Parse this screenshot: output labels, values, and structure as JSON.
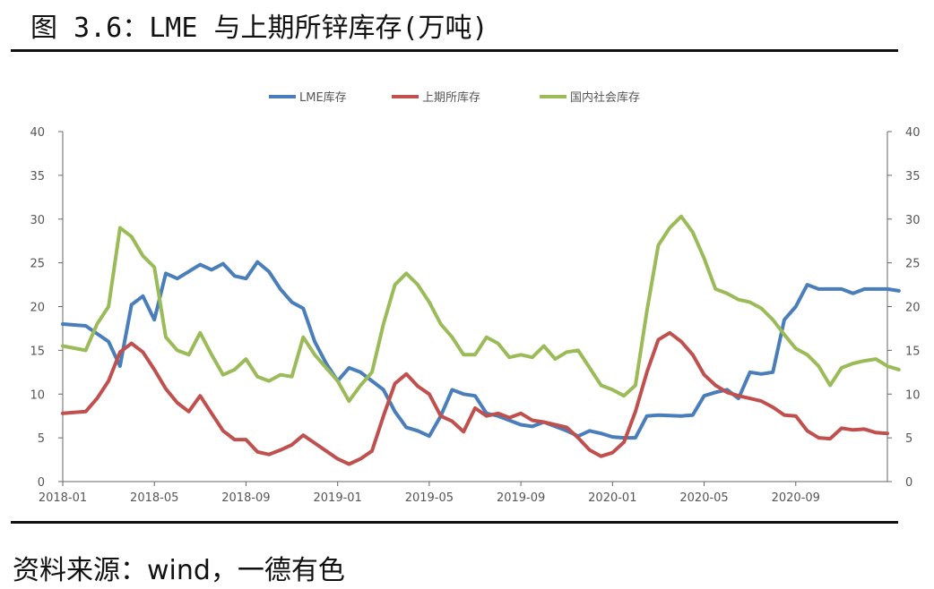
{
  "title": "图 3.6：LME 与上期所锌库存(万吨)",
  "source": "资料来源：wind，一德有色",
  "chart_data": {
    "type": "line",
    "xlabel": "",
    "ylabel": "",
    "ylim": [
      0,
      40
    ],
    "yticks": [
      "0",
      "5",
      "10",
      "15",
      "20",
      "25",
      "30",
      "35",
      "40"
    ],
    "x_tick_labels": [
      "2018-01",
      "2018-05",
      "2018-09",
      "2019-01",
      "2019-05",
      "2019-09",
      "2020-01",
      "2020-05",
      "2020-09"
    ],
    "x_range": [
      "2018-01",
      "2021-01"
    ],
    "legend_position": "top",
    "series": [
      {
        "name": "LME库存",
        "color": "#4a7ebb",
        "points": [
          [
            "2018-01",
            18.0
          ],
          [
            "2018-02",
            17.8
          ],
          [
            "2018-03",
            16.0
          ],
          [
            "2018-03",
            13.2
          ],
          [
            "2018-04",
            20.2
          ],
          [
            "2018-04",
            21.2
          ],
          [
            "2018-05",
            18.5
          ],
          [
            "2018-05",
            23.8
          ],
          [
            "2018-06",
            23.2
          ],
          [
            "2018-07",
            24.8
          ],
          [
            "2018-07",
            24.2
          ],
          [
            "2018-08",
            24.9
          ],
          [
            "2018-08",
            23.5
          ],
          [
            "2018-09",
            23.2
          ],
          [
            "2018-09",
            25.1
          ],
          [
            "2018-10",
            24.0
          ],
          [
            "2018-10",
            22.0
          ],
          [
            "2018-11",
            20.5
          ],
          [
            "2018-11",
            19.8
          ],
          [
            "2018-12",
            16.0
          ],
          [
            "2018-12",
            13.5
          ],
          [
            "2019-01",
            11.5
          ],
          [
            "2019-01",
            13.0
          ],
          [
            "2019-02",
            12.5
          ],
          [
            "2019-02",
            11.5
          ],
          [
            "2019-03",
            10.5
          ],
          [
            "2019-03",
            8.0
          ],
          [
            "2019-04",
            6.2
          ],
          [
            "2019-04",
            5.8
          ],
          [
            "2019-05",
            5.2
          ],
          [
            "2019-05",
            7.5
          ],
          [
            "2019-06",
            10.5
          ],
          [
            "2019-06",
            10.0
          ],
          [
            "2019-07",
            9.8
          ],
          [
            "2019-07",
            7.8
          ],
          [
            "2019-08",
            7.5
          ],
          [
            "2019-09",
            6.5
          ],
          [
            "2019-09",
            6.3
          ],
          [
            "2019-10",
            6.8
          ],
          [
            "2019-11",
            5.8
          ],
          [
            "2019-11",
            5.2
          ],
          [
            "2019-12",
            5.8
          ],
          [
            "2019-12",
            5.5
          ],
          [
            "2020-01",
            5.1
          ],
          [
            "2020-01",
            5.0
          ],
          [
            "2020-02",
            5.0
          ],
          [
            "2020-02",
            7.5
          ],
          [
            "2020-03",
            7.6
          ],
          [
            "2020-04",
            7.5
          ],
          [
            "2020-04",
            7.6
          ],
          [
            "2020-05",
            9.8
          ],
          [
            "2020-05",
            10.2
          ],
          [
            "2020-06",
            10.5
          ],
          [
            "2020-06",
            9.5
          ],
          [
            "2020-07",
            12.5
          ],
          [
            "2020-07",
            12.3
          ],
          [
            "2020-08",
            12.5
          ],
          [
            "2020-08",
            18.5
          ],
          [
            "2020-09",
            20.0
          ],
          [
            "2020-09",
            22.5
          ],
          [
            "2020-10",
            22.0
          ],
          [
            "2020-11",
            22.0
          ],
          [
            "2020-11",
            21.5
          ],
          [
            "2020-12",
            22.0
          ],
          [
            "2021-01",
            22.0
          ],
          [
            "2021-01",
            21.8
          ]
        ]
      },
      {
        "name": "上期所库存",
        "color": "#c0504d",
        "points": [
          [
            "2018-01",
            7.8
          ],
          [
            "2018-02",
            8.0
          ],
          [
            "2018-02",
            9.5
          ],
          [
            "2018-03",
            11.5
          ],
          [
            "2018-03",
            14.8
          ],
          [
            "2018-04",
            15.8
          ],
          [
            "2018-04",
            14.8
          ],
          [
            "2018-05",
            12.8
          ],
          [
            "2018-05",
            10.6
          ],
          [
            "2018-06",
            9.0
          ],
          [
            "2018-06",
            8.0
          ],
          [
            "2018-07",
            9.8
          ],
          [
            "2018-07",
            7.8
          ],
          [
            "2018-08",
            5.8
          ],
          [
            "2018-08",
            4.8
          ],
          [
            "2018-09",
            4.8
          ],
          [
            "2018-09",
            3.4
          ],
          [
            "2018-10",
            3.1
          ],
          [
            "2018-10",
            3.6
          ],
          [
            "2018-11",
            4.2
          ],
          [
            "2018-11",
            5.3
          ],
          [
            "2018-12",
            4.4
          ],
          [
            "2018-12",
            3.5
          ],
          [
            "2019-01",
            2.6
          ],
          [
            "2019-01",
            2.0
          ],
          [
            "2019-02",
            2.6
          ],
          [
            "2019-02",
            3.5
          ],
          [
            "2019-03",
            7.5
          ],
          [
            "2019-03",
            11.2
          ],
          [
            "2019-04",
            12.3
          ],
          [
            "2019-04",
            10.9
          ],
          [
            "2019-05",
            10.0
          ],
          [
            "2019-05",
            7.5
          ],
          [
            "2019-06",
            6.9
          ],
          [
            "2019-06",
            5.7
          ],
          [
            "2019-07",
            8.4
          ],
          [
            "2019-07",
            7.5
          ],
          [
            "2019-08",
            7.8
          ],
          [
            "2019-08",
            7.3
          ],
          [
            "2019-09",
            7.8
          ],
          [
            "2019-09",
            7.0
          ],
          [
            "2019-10",
            6.8
          ],
          [
            "2019-10",
            6.5
          ],
          [
            "2019-11",
            6.2
          ],
          [
            "2019-11",
            5.0
          ],
          [
            "2019-12",
            3.6
          ],
          [
            "2019-12",
            2.9
          ],
          [
            "2020-01",
            3.3
          ],
          [
            "2020-01",
            4.5
          ],
          [
            "2020-02",
            8.0
          ],
          [
            "2020-02",
            12.5
          ],
          [
            "2020-03",
            16.2
          ],
          [
            "2020-03",
            17.0
          ],
          [
            "2020-04",
            16.0
          ],
          [
            "2020-04",
            14.5
          ],
          [
            "2020-05",
            12.2
          ],
          [
            "2020-05",
            11.0
          ],
          [
            "2020-06",
            10.2
          ],
          [
            "2020-06",
            9.8
          ],
          [
            "2020-07",
            9.5
          ],
          [
            "2020-07",
            9.2
          ],
          [
            "2020-08",
            8.5
          ],
          [
            "2020-08",
            7.6
          ],
          [
            "2020-09",
            7.5
          ],
          [
            "2020-09",
            5.8
          ],
          [
            "2020-10",
            5.0
          ],
          [
            "2020-10",
            4.9
          ],
          [
            "2020-11",
            6.1
          ],
          [
            "2020-11",
            5.9
          ],
          [
            "2020-12",
            6.0
          ],
          [
            "2020-12",
            5.6
          ],
          [
            "2021-01",
            5.5
          ]
        ]
      },
      {
        "name": "国内社会库存",
        "color": "#9bbb59",
        "points": [
          [
            "2018-01",
            15.5
          ],
          [
            "2018-02",
            15.0
          ],
          [
            "2018-02",
            18.0
          ],
          [
            "2018-03",
            20.0
          ],
          [
            "2018-03",
            29.0
          ],
          [
            "2018-04",
            28.0
          ],
          [
            "2018-04",
            25.8
          ],
          [
            "2018-05",
            24.5
          ],
          [
            "2018-05",
            16.5
          ],
          [
            "2018-06",
            15.0
          ],
          [
            "2018-06",
            14.5
          ],
          [
            "2018-07",
            17.0
          ],
          [
            "2018-07",
            14.5
          ],
          [
            "2018-08",
            12.2
          ],
          [
            "2018-08",
            12.8
          ],
          [
            "2018-09",
            14.0
          ],
          [
            "2018-09",
            12.0
          ],
          [
            "2018-10",
            11.5
          ],
          [
            "2018-10",
            12.2
          ],
          [
            "2018-11",
            12.0
          ],
          [
            "2018-11",
            16.5
          ],
          [
            "2018-12",
            14.5
          ],
          [
            "2018-12",
            13.0
          ],
          [
            "2019-01",
            11.5
          ],
          [
            "2019-01",
            9.2
          ],
          [
            "2019-02",
            11.0
          ],
          [
            "2019-02",
            12.5
          ],
          [
            "2019-03",
            18.0
          ],
          [
            "2019-03",
            22.5
          ],
          [
            "2019-04",
            23.8
          ],
          [
            "2019-04",
            22.5
          ],
          [
            "2019-05",
            20.5
          ],
          [
            "2019-05",
            18.0
          ],
          [
            "2019-06",
            16.5
          ],
          [
            "2019-06",
            14.5
          ],
          [
            "2019-07",
            14.5
          ],
          [
            "2019-07",
            16.5
          ],
          [
            "2019-08",
            15.8
          ],
          [
            "2019-08",
            14.2
          ],
          [
            "2019-09",
            14.5
          ],
          [
            "2019-09",
            14.2
          ],
          [
            "2019-10",
            15.5
          ],
          [
            "2019-10",
            14.0
          ],
          [
            "2019-11",
            14.8
          ],
          [
            "2019-11",
            15.0
          ],
          [
            "2019-12",
            13.0
          ],
          [
            "2019-12",
            11.0
          ],
          [
            "2020-01",
            10.5
          ],
          [
            "2020-01",
            9.8
          ],
          [
            "2020-02",
            11.0
          ],
          [
            "2020-02",
            19.5
          ],
          [
            "2020-03",
            27.0
          ],
          [
            "2020-03",
            29.0
          ],
          [
            "2020-04",
            30.3
          ],
          [
            "2020-04",
            28.5
          ],
          [
            "2020-05",
            25.5
          ],
          [
            "2020-05",
            22.0
          ],
          [
            "2020-06",
            21.5
          ],
          [
            "2020-06",
            20.8
          ],
          [
            "2020-07",
            20.5
          ],
          [
            "2020-07",
            19.8
          ],
          [
            "2020-08",
            18.5
          ],
          [
            "2020-08",
            16.8
          ],
          [
            "2020-09",
            15.2
          ],
          [
            "2020-09",
            14.5
          ],
          [
            "2020-10",
            13.2
          ],
          [
            "2020-10",
            11.0
          ],
          [
            "2020-11",
            13.0
          ],
          [
            "2020-11",
            13.5
          ],
          [
            "2020-12",
            13.8
          ],
          [
            "2020-12",
            14.0
          ],
          [
            "2021-01",
            13.2
          ],
          [
            "2021-01",
            12.8
          ]
        ]
      }
    ]
  }
}
